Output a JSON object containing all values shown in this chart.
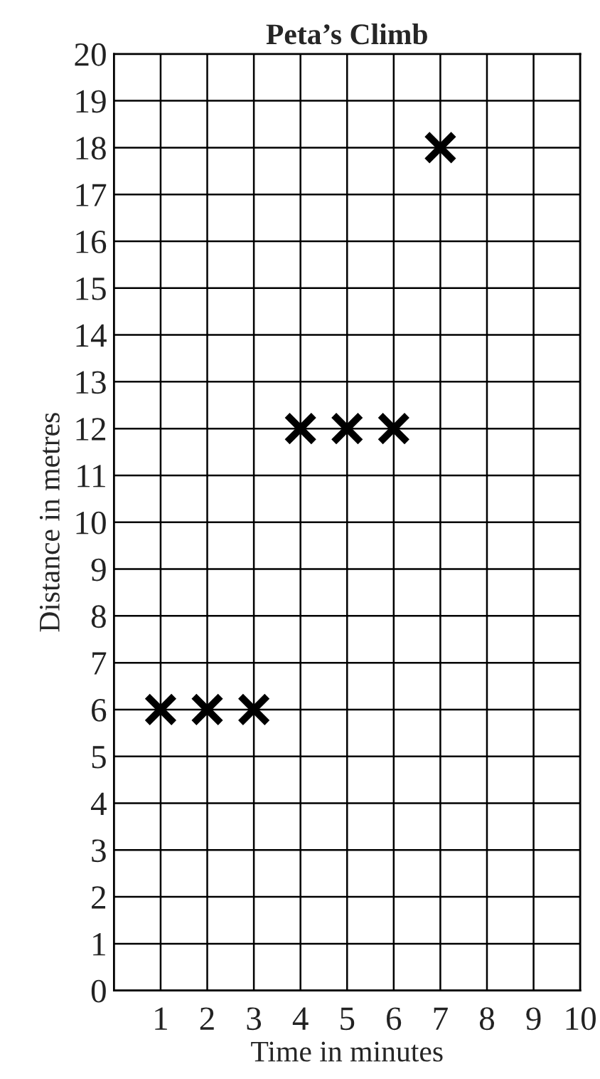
{
  "chart_data": {
    "type": "scatter",
    "title": "Peta’s Climb",
    "xlabel": "Time in minutes",
    "ylabel": "Distance in metres",
    "x": [
      1,
      2,
      3,
      4,
      5,
      6,
      7
    ],
    "series": [
      {
        "color": "#000000",
        "values": [
          6,
          6,
          6,
          12,
          12,
          12,
          18
        ]
      }
    ],
    "xlim": [
      0,
      10
    ],
    "xticks": [
      1,
      2,
      3,
      4,
      5,
      6,
      7,
      8,
      9,
      10
    ],
    "ylim": [
      0,
      20
    ],
    "yticks": [
      0,
      1,
      2,
      3,
      4,
      5,
      6,
      7,
      8,
      9,
      10,
      11,
      12,
      13,
      14,
      15,
      16,
      17,
      18,
      19,
      20
    ],
    "grid": true,
    "marker": "cross"
  }
}
